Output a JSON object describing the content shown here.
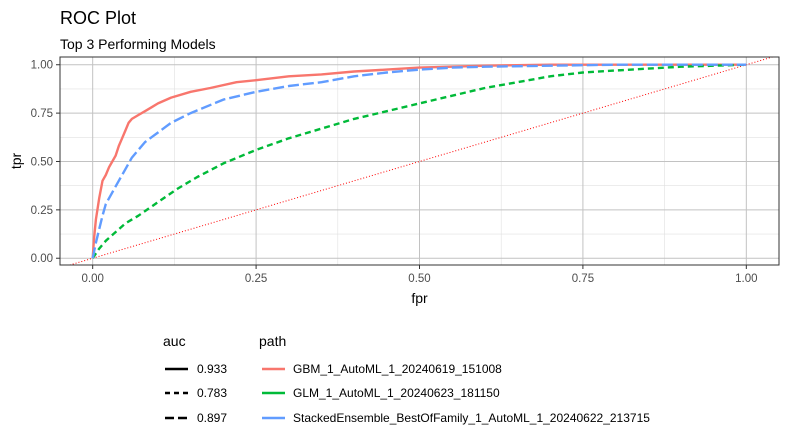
{
  "chart_data": {
    "type": "line",
    "title": "ROC Plot",
    "subtitle": "Top 3 Performing Models",
    "xlabel": "fpr",
    "ylabel": "tpr",
    "xlim": [
      -0.05,
      1.05
    ],
    "ylim": [
      -0.035,
      1.04
    ],
    "x_ticks": [
      0.0,
      0.25,
      0.5,
      0.75,
      1.0
    ],
    "x_tick_labels": [
      "0.00",
      "0.25",
      "0.50",
      "0.75",
      "1.00"
    ],
    "y_ticks": [
      0.0,
      0.25,
      0.5,
      0.75,
      1.0
    ],
    "y_tick_labels": [
      "0.00",
      "0.25",
      "0.50",
      "0.75",
      "1.00"
    ],
    "grid": true,
    "reference_line": {
      "type": "diagonal",
      "color": "#ff0000",
      "style": "dotted"
    },
    "legend_placement": "bottom",
    "legend": {
      "auc_title": "auc",
      "path_title": "path",
      "auc_entries": [
        {
          "label": "0.933",
          "linetype": "solid"
        },
        {
          "label": "0.783",
          "linetype": "dashed"
        },
        {
          "label": "0.897",
          "linetype": "longdash"
        }
      ]
    },
    "series": [
      {
        "name": "GBM_1_AutoML_1_20240619_151008",
        "auc": "0.933",
        "color": "#f8766d",
        "linetype": "solid",
        "points": [
          [
            0,
            0
          ],
          [
            0.002,
            0.1
          ],
          [
            0.005,
            0.2
          ],
          [
            0.01,
            0.31
          ],
          [
            0.015,
            0.4
          ],
          [
            0.02,
            0.43
          ],
          [
            0.025,
            0.47
          ],
          [
            0.03,
            0.5
          ],
          [
            0.035,
            0.53
          ],
          [
            0.04,
            0.58
          ],
          [
            0.045,
            0.62
          ],
          [
            0.05,
            0.66
          ],
          [
            0.055,
            0.7
          ],
          [
            0.06,
            0.72
          ],
          [
            0.07,
            0.74
          ],
          [
            0.08,
            0.76
          ],
          [
            0.09,
            0.78
          ],
          [
            0.1,
            0.8
          ],
          [
            0.12,
            0.83
          ],
          [
            0.15,
            0.86
          ],
          [
            0.18,
            0.88
          ],
          [
            0.22,
            0.91
          ],
          [
            0.25,
            0.92
          ],
          [
            0.3,
            0.94
          ],
          [
            0.35,
            0.95
          ],
          [
            0.4,
            0.965
          ],
          [
            0.45,
            0.975
          ],
          [
            0.5,
            0.985
          ],
          [
            0.55,
            0.99
          ],
          [
            0.6,
            0.995
          ],
          [
            0.7,
            1.0
          ],
          [
            1.0,
            1.0
          ]
        ]
      },
      {
        "name": "GLM_1_AutoML_1_20240623_181150",
        "auc": "0.783",
        "color": "#00ba38",
        "linetype": "dashed",
        "points": [
          [
            0,
            0
          ],
          [
            0.01,
            0.05
          ],
          [
            0.02,
            0.09
          ],
          [
            0.03,
            0.12
          ],
          [
            0.05,
            0.18
          ],
          [
            0.07,
            0.22
          ],
          [
            0.1,
            0.29
          ],
          [
            0.13,
            0.36
          ],
          [
            0.16,
            0.42
          ],
          [
            0.2,
            0.49
          ],
          [
            0.25,
            0.56
          ],
          [
            0.3,
            0.62
          ],
          [
            0.35,
            0.67
          ],
          [
            0.4,
            0.72
          ],
          [
            0.45,
            0.76
          ],
          [
            0.5,
            0.8
          ],
          [
            0.55,
            0.84
          ],
          [
            0.6,
            0.88
          ],
          [
            0.65,
            0.91
          ],
          [
            0.7,
            0.94
          ],
          [
            0.75,
            0.96
          ],
          [
            0.8,
            0.97
          ],
          [
            0.85,
            0.98
          ],
          [
            0.9,
            0.99
          ],
          [
            0.95,
            0.995
          ],
          [
            1.0,
            1.0
          ]
        ]
      },
      {
        "name": "StackedEnsemble_BestOfFamily_1_AutoML_1_20240622_213715",
        "auc": "0.897",
        "color": "#619cff",
        "linetype": "longdash",
        "points": [
          [
            0,
            0
          ],
          [
            0.005,
            0.08
          ],
          [
            0.01,
            0.15
          ],
          [
            0.015,
            0.22
          ],
          [
            0.02,
            0.28
          ],
          [
            0.03,
            0.34
          ],
          [
            0.04,
            0.4
          ],
          [
            0.05,
            0.46
          ],
          [
            0.06,
            0.52
          ],
          [
            0.07,
            0.56
          ],
          [
            0.08,
            0.6
          ],
          [
            0.1,
            0.65
          ],
          [
            0.12,
            0.7
          ],
          [
            0.15,
            0.75
          ],
          [
            0.2,
            0.82
          ],
          [
            0.25,
            0.86
          ],
          [
            0.3,
            0.89
          ],
          [
            0.35,
            0.91
          ],
          [
            0.4,
            0.94
          ],
          [
            0.45,
            0.96
          ],
          [
            0.5,
            0.975
          ],
          [
            0.55,
            0.985
          ],
          [
            0.6,
            0.99
          ],
          [
            0.7,
            0.995
          ],
          [
            0.8,
            1.0
          ],
          [
            1.0,
            1.0
          ]
        ]
      }
    ]
  }
}
